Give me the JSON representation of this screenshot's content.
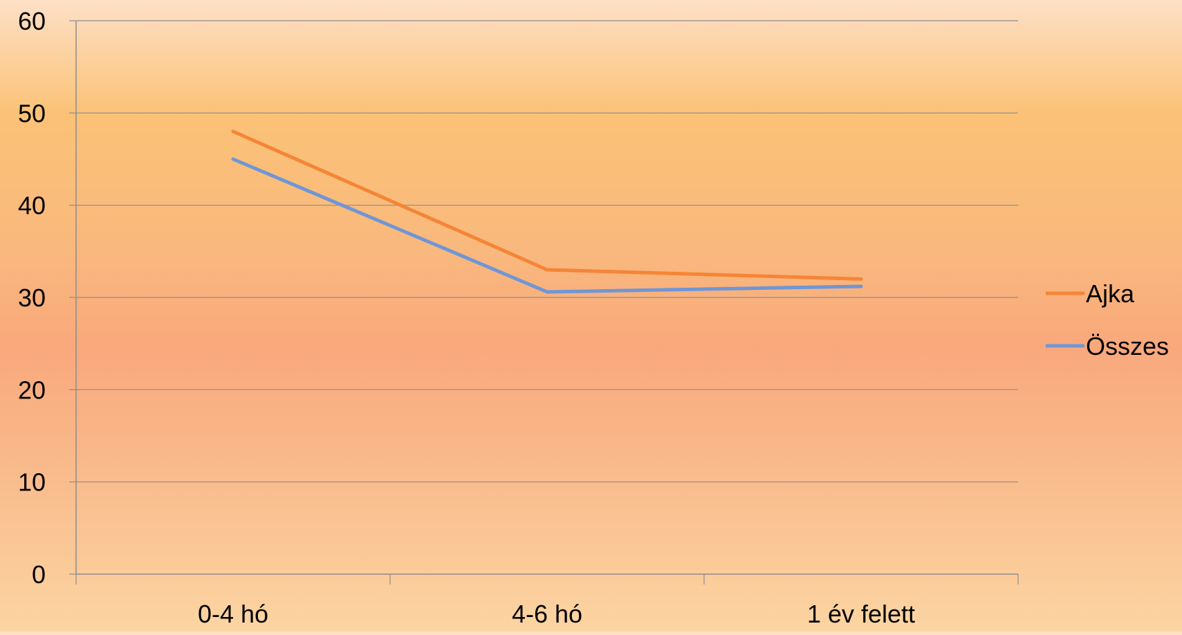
{
  "chart_data": {
    "type": "line",
    "title": "",
    "xlabel": "",
    "ylabel": "",
    "categories": [
      "0-4 hó",
      "4-6 hó",
      "1 év felett"
    ],
    "ylim": [
      0,
      60
    ],
    "yticks": [
      0,
      10,
      20,
      30,
      40,
      50,
      60
    ],
    "grid": true,
    "legend_position": "right",
    "series": [
      {
        "name": "Ajka",
        "values": [
          48,
          33,
          32
        ],
        "color": "#f58536"
      },
      {
        "name": "Összes",
        "values": [
          45,
          30.6,
          31.2
        ],
        "color": "#6f96d6"
      }
    ],
    "axis_color": "#8c8c8c",
    "grid_color": "#8c8c8c"
  }
}
